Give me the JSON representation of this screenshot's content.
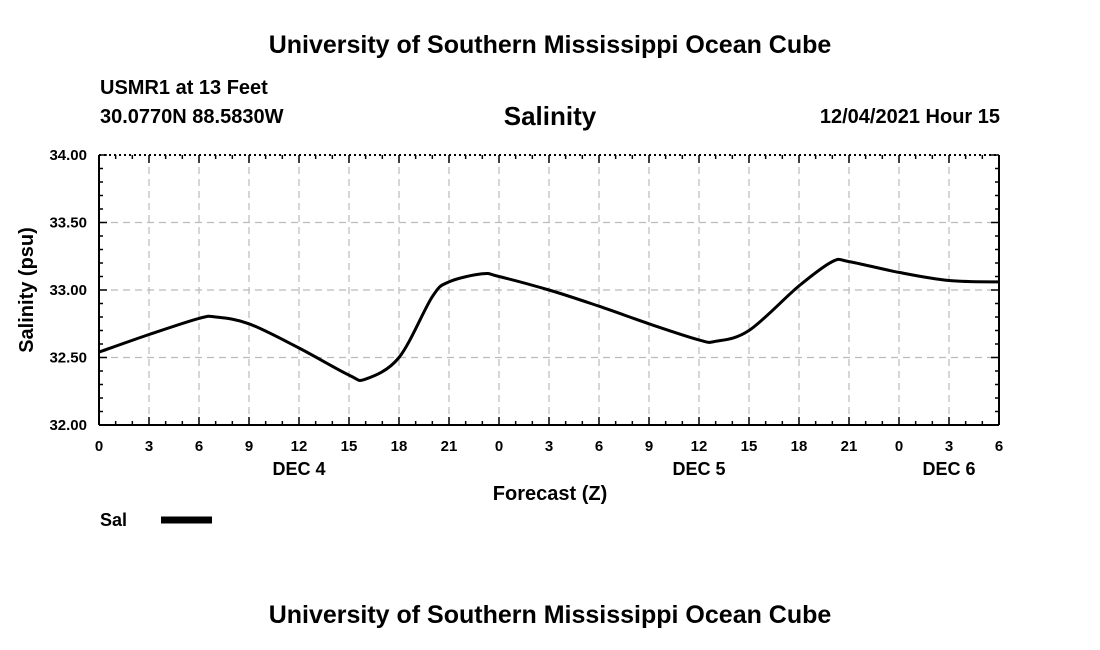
{
  "header": {
    "title_top": "University of Southern Mississippi Ocean Cube",
    "station": "USMR1 at 13 Feet",
    "coords": "30.0770N  88.5830W",
    "datetime": "12/04/2021 Hour 15",
    "title_bottom": "University of Southern Mississippi Ocean Cube"
  },
  "colors": {
    "line": "#000000",
    "grid": "#bbbbbb"
  },
  "chart_data": {
    "type": "line",
    "title": "Salinity",
    "xlabel": "Forecast (Z)",
    "ylabel": "Salinity (psu)",
    "ylim": [
      32.0,
      34.0
    ],
    "xlim": [
      0,
      54
    ],
    "grid": true,
    "y_ticks": [
      "32.00",
      "32.50",
      "33.00",
      "33.50",
      "34.00"
    ],
    "x_tick_labels": [
      "0",
      "3",
      "6",
      "9",
      "12",
      "15",
      "18",
      "21",
      "0",
      "3",
      "6",
      "9",
      "12",
      "15",
      "18",
      "21",
      "0",
      "3",
      "6"
    ],
    "date_labels": [
      {
        "label": "DEC 4",
        "hour": 12
      },
      {
        "label": "DEC 5",
        "hour": 36
      },
      {
        "label": "DEC 6",
        "hour": 51
      }
    ],
    "legend": [
      {
        "label": "Sal",
        "series": "Sal"
      }
    ],
    "series": [
      {
        "name": "Sal",
        "x": [
          0,
          3,
          6,
          7,
          9,
          12,
          15,
          16,
          18,
          20,
          21,
          23,
          24,
          27,
          30,
          33,
          36,
          37,
          39,
          42,
          44,
          45,
          48,
          51,
          54
        ],
        "values": [
          32.54,
          32.67,
          32.79,
          32.8,
          32.75,
          32.57,
          32.37,
          32.34,
          32.5,
          32.95,
          33.06,
          33.12,
          33.1,
          33.0,
          32.88,
          32.75,
          32.63,
          32.62,
          32.7,
          33.03,
          33.21,
          33.21,
          33.13,
          33.07,
          33.06
        ]
      }
    ]
  }
}
